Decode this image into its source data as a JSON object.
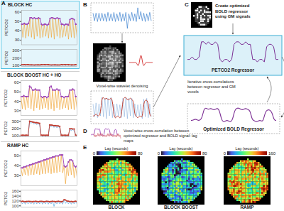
{
  "chart_data": [
    {
      "type": "line",
      "title": "BLOCK HC",
      "x": [
        0,
        1,
        2,
        3,
        4,
        5,
        6,
        7,
        8,
        9,
        10,
        11,
        12,
        13,
        14,
        15,
        16,
        17,
        18,
        19,
        20,
        21,
        22,
        23,
        24,
        25,
        26,
        27,
        28,
        29,
        30,
        31,
        32,
        33,
        34,
        35,
        36,
        37,
        38,
        39
      ],
      "xlim": [
        0,
        39
      ],
      "tick_labels": "y",
      "ylabel": "PETCO2",
      "ylim": [
        25,
        62
      ],
      "yticks": [
        30,
        40,
        50,
        60
      ],
      "y2label": "PETO2",
      "y2lim": [
        90,
        320
      ],
      "y2ticks": [
        100,
        200,
        300
      ],
      "series": [
        {
          "color": "#f0a83c",
          "line_style": "solid",
          "values": [
            47,
            33,
            48,
            32,
            47,
            34,
            54,
            33,
            53,
            31,
            53,
            34,
            54,
            32,
            47,
            33,
            47,
            34,
            46,
            32,
            53,
            33,
            54,
            31,
            53,
            34,
            53,
            32,
            47,
            33,
            46,
            34,
            47,
            31,
            52,
            33,
            53,
            32,
            47,
            33
          ]
        },
        {
          "color": "#9b3fb4",
          "line_style": "solid",
          "marker": "circle",
          "values": [
            47,
            47,
            48,
            47,
            47,
            48,
            54,
            54,
            53,
            54,
            53,
            53,
            54,
            53,
            47,
            46,
            47,
            47,
            46,
            47,
            53,
            54,
            54,
            53,
            53,
            54,
            53,
            53,
            47,
            47,
            46,
            47,
            47,
            46,
            52,
            53,
            53,
            52,
            47,
            47
          ]
        },
        {
          "color": "#5aa9e6",
          "line_style": "solid",
          "axis": "y2",
          "values": [
            112,
            100,
            112,
            98,
            111,
            100,
            108,
            97,
            108,
            96,
            108,
            97,
            108,
            96,
            111,
            100,
            111,
            100,
            111,
            100,
            108,
            96,
            108,
            97,
            108,
            96,
            107,
            96,
            112,
            99,
            112,
            99,
            112,
            99,
            109,
            97,
            108,
            97,
            111,
            100
          ]
        },
        {
          "color": "#c0392b",
          "line_style": "solid",
          "marker": "circle",
          "axis": "y2",
          "values": [
            112,
            111,
            112,
            110,
            111,
            112,
            108,
            109,
            108,
            107,
            108,
            109,
            108,
            108,
            111,
            112,
            111,
            112,
            111,
            112,
            108,
            107,
            108,
            109,
            108,
            108,
            107,
            108,
            112,
            111,
            112,
            111,
            112,
            111,
            109,
            108,
            108,
            109,
            111,
            112
          ]
        }
      ]
    },
    {
      "type": "line",
      "title": "BLOCK BOOST HC + HO",
      "x": [
        0,
        1,
        2,
        3,
        4,
        5,
        6,
        7,
        8,
        9,
        10,
        11,
        12,
        13,
        14,
        15,
        16,
        17,
        18,
        19,
        20,
        21,
        22,
        23,
        24,
        25,
        26,
        27,
        28,
        29,
        30,
        31,
        32,
        33,
        34,
        35,
        36,
        37,
        38,
        39
      ],
      "xlim": [
        0,
        39
      ],
      "tick_labels": "y",
      "ylabel": "PETCO2",
      "ylim": [
        25,
        62
      ],
      "yticks": [
        30,
        40,
        50,
        60
      ],
      "y2label": "PETO2",
      "y2lim": [
        90,
        320
      ],
      "y2ticks": [
        100,
        200,
        300
      ],
      "series": [
        {
          "color": "#f0a83c",
          "line_style": "solid",
          "values": [
            45,
            32,
            46,
            31,
            45,
            33,
            56,
            32,
            52,
            30,
            53,
            33,
            52,
            31,
            45,
            32,
            45,
            33,
            44,
            31,
            55,
            32,
            52,
            30,
            52,
            33,
            52,
            31,
            45,
            32,
            44,
            33,
            45,
            31,
            52,
            32,
            53,
            31,
            45,
            32
          ]
        },
        {
          "color": "#9b3fb4",
          "line_style": "solid",
          "marker": "circle",
          "values": [
            45,
            45,
            46,
            45,
            45,
            45,
            56,
            55,
            52,
            52,
            53,
            52,
            52,
            52,
            45,
            44,
            45,
            45,
            44,
            45,
            55,
            56,
            52,
            52,
            52,
            53,
            52,
            52,
            45,
            45,
            44,
            45,
            45,
            45,
            52,
            52,
            53,
            52,
            45,
            45
          ]
        },
        {
          "color": "#5aa9e6",
          "line_style": "solid",
          "axis": "y2",
          "values": [
            110,
            97,
            110,
            96,
            111,
            97,
            300,
            270,
            290,
            262,
            280,
            252,
            275,
            245,
            112,
            97,
            111,
            96,
            111,
            97,
            250,
            222,
            245,
            215,
            240,
            210,
            235,
            205,
            111,
            97,
            111,
            96,
            110,
            97,
            200,
            170,
            195,
            168,
            112,
            97
          ]
        },
        {
          "color": "#c0392b",
          "line_style": "solid",
          "marker": "circle",
          "axis": "y2",
          "values": [
            110,
            111,
            110,
            110,
            111,
            110,
            300,
            295,
            290,
            285,
            280,
            280,
            275,
            270,
            112,
            110,
            111,
            110,
            111,
            110,
            250,
            248,
            245,
            240,
            240,
            238,
            235,
            230,
            111,
            110,
            111,
            110,
            110,
            111,
            200,
            198,
            195,
            195,
            112,
            110
          ]
        }
      ]
    },
    {
      "type": "line",
      "title": "RAMP HC",
      "x": [
        0,
        1,
        2,
        3,
        4,
        5,
        6,
        7,
        8,
        9,
        10,
        11,
        12,
        13,
        14,
        15,
        16,
        17,
        18,
        19,
        20,
        21,
        22,
        23,
        24,
        25,
        26,
        27,
        28,
        29,
        30,
        31,
        32,
        33,
        34,
        35,
        36,
        37,
        38,
        39
      ],
      "xlim": [
        0,
        39
      ],
      "tick_labels": "y",
      "ylabel": "PETCO2",
      "ylim": [
        20,
        55
      ],
      "yticks": [
        30,
        40,
        50
      ],
      "y2label": "PETO2",
      "y2lim": [
        95,
        165
      ],
      "y2ticks": [
        100,
        120,
        140,
        160
      ],
      "series": [
        {
          "color": "#f0a83c",
          "line_style": "solid",
          "values": [
            38,
            30,
            39,
            31,
            40,
            30,
            41,
            31,
            42,
            31,
            43,
            32,
            44,
            31,
            45,
            32,
            46,
            32,
            47,
            33,
            48,
            32,
            49,
            33,
            50,
            33,
            50,
            34,
            51,
            33,
            40,
            22,
            40,
            30,
            46,
            31,
            45,
            28,
            39,
            29
          ]
        },
        {
          "color": "#9b3fb4",
          "line_style": "solid",
          "marker": "circle",
          "values": [
            38,
            38,
            39,
            39,
            40,
            40,
            41,
            41,
            42,
            42,
            43,
            43,
            44,
            44,
            45,
            45,
            46,
            46,
            47,
            47,
            48,
            48,
            49,
            49,
            50,
            50,
            50,
            51,
            51,
            51,
            40,
            39,
            40,
            44,
            46,
            46,
            45,
            40,
            39,
            40
          ]
        },
        {
          "color": "#5aa9e6",
          "line_style": "solid",
          "axis": "y2",
          "values": [
            118,
            108,
            118,
            107,
            118,
            108,
            118,
            108,
            117,
            107,
            119,
            108,
            117,
            108,
            119,
            107,
            117,
            108,
            119,
            107,
            117,
            108,
            119,
            98,
            117,
            108,
            119,
            108,
            117,
            107,
            125,
            110,
            120,
            108,
            118,
            107,
            117,
            108,
            119,
            108
          ]
        },
        {
          "color": "#c0392b",
          "line_style": "solid",
          "marker": "circle",
          "axis": "y2",
          "values": [
            118,
            119,
            118,
            117,
            118,
            119,
            118,
            118,
            117,
            118,
            119,
            118,
            117,
            118,
            119,
            118,
            117,
            118,
            119,
            118,
            117,
            118,
            119,
            118,
            117,
            118,
            119,
            118,
            117,
            118,
            125,
            124,
            120,
            119,
            118,
            118,
            117,
            118,
            119,
            118
          ]
        }
      ]
    }
  ],
  "diagram": {
    "panel_labels": [
      "A",
      "B",
      "C",
      "D",
      "E"
    ],
    "B": {
      "text": "Voxel-wise wavelet denoising"
    },
    "C": {
      "text": "Create optimized BOLD regressor using GM signals",
      "regressor": "PETCO2 Regressor",
      "iteration": "Iterative cross-correlations between regressor and GM voxels",
      "optimized": "Optimized BOLD Regressor"
    },
    "D": {
      "text": "Voxel-wise cross-correlation between optimized regressor and BOLD signal: lag maps"
    },
    "E": {
      "colorbar_label": "Lag (seconds)",
      "maps": [
        {
          "name": "BLOCK",
          "range": [
            0,
            80
          ],
          "ticks": [
            0,
            80
          ]
        },
        {
          "name": "BLOCK BOOST",
          "range": [
            0,
            80
          ],
          "ticks": [
            0,
            80
          ]
        },
        {
          "name": "RAMP",
          "range": [
            0,
            160
          ],
          "ticks": [
            0,
            160
          ]
        }
      ]
    }
  }
}
